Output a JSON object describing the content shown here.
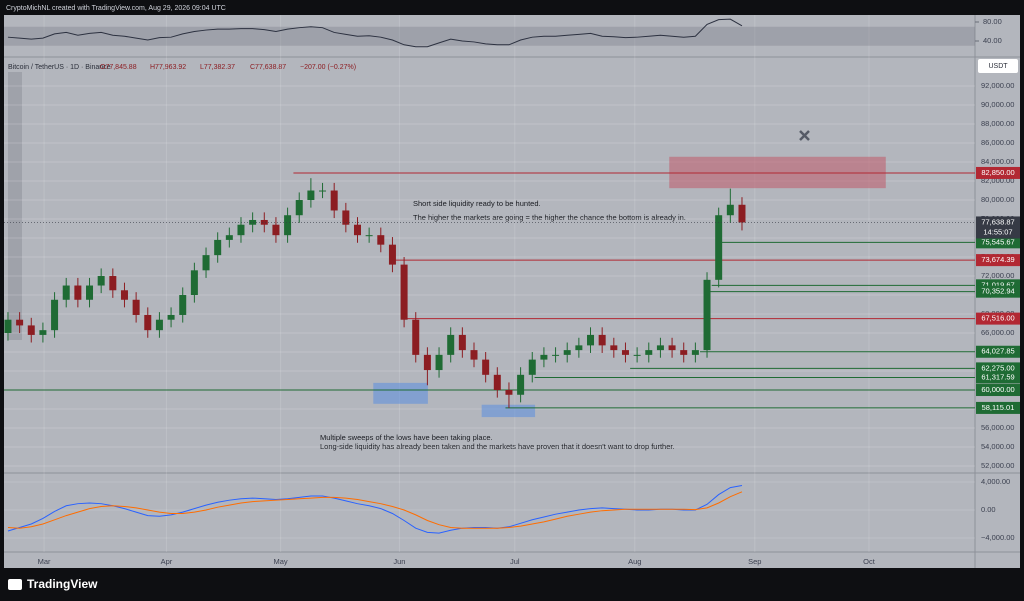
{
  "header": {
    "credit": "CryptoMichNL created with TradingView.com, Aug 29, 2026 09:04 UTC",
    "symbol": "Bitcoin / TetherUS · 1D · Binance",
    "ohlc": [
      "O77,845.88",
      "H77,963.92",
      "L77,382.37",
      "C77,638.87",
      "−207.00 (−0.27%)"
    ],
    "currency": "USDT",
    "brand": "TradingView"
  },
  "annotations": [
    "Short side liquidity ready to be hunted.",
    "The higher the markets are going = the higher the chance the bottom is already in.",
    "Multiple sweeps of the lows have been taking place.",
    "Long-side liquidity has already been taken and the markets have proven that it doesn't want to drop further."
  ],
  "chart_data": {
    "type": "candlestick",
    "up_color": "#1f6b34",
    "down_color": "#8c1d22",
    "grid": true,
    "xlim": [
      -0.34,
      83
    ],
    "xticks": [
      {
        "value": 3.1,
        "label": "Mar"
      },
      {
        "value": 13.6,
        "label": "Apr"
      },
      {
        "value": 23.4,
        "label": "May"
      },
      {
        "value": 33.6,
        "label": "Jun"
      },
      {
        "value": 43.5,
        "label": "Jul"
      },
      {
        "value": 53.8,
        "label": "Aug"
      },
      {
        "value": 64.1,
        "label": "Sep"
      },
      {
        "value": 73.9,
        "label": "Oct"
      }
    ],
    "ylim": [
      51370,
      94950
    ],
    "yticks": [
      {
        "value": 92000,
        "label": "92,000.00"
      },
      {
        "value": 90000,
        "label": "90,000.00"
      },
      {
        "value": 88000,
        "label": "88,000.00"
      },
      {
        "value": 86000,
        "label": "86,000.00"
      },
      {
        "value": 84000,
        "label": "84,000.00"
      },
      {
        "value": 82000,
        "label": "82,000.00"
      },
      {
        "value": 80000,
        "label": "80,000.00"
      },
      {
        "value": 78000,
        "label": "78,000.00"
      },
      {
        "value": 76000,
        "label": "76,000.00"
      },
      {
        "value": 74000,
        "label": "74,000.00"
      },
      {
        "value": 72000,
        "label": "72,000.00"
      },
      {
        "value": 70000,
        "label": "70,000.00"
      },
      {
        "value": 68000,
        "label": "68,000.00"
      },
      {
        "value": 66000,
        "label": "66,000.00"
      },
      {
        "value": 64000,
        "label": "64,000.00"
      },
      {
        "value": 62000,
        "label": "62,000.00"
      },
      {
        "value": 60000,
        "label": "60,000.00"
      },
      {
        "value": 58000,
        "label": "58,000.00"
      },
      {
        "value": 56000,
        "label": "56,000.00"
      },
      {
        "value": 54000,
        "label": "54,000.00"
      },
      {
        "value": 52000,
        "label": "52,000.00"
      }
    ],
    "open": [
      66000,
      67400,
      66800,
      65800,
      66300,
      69500,
      71000,
      69500,
      71000,
      72000,
      70500,
      69500,
      67900,
      66300,
      67400,
      67900,
      70000,
      72600,
      74200,
      75800,
      76300,
      77400,
      77900,
      77400,
      76300,
      78400,
      80000,
      81000,
      81000,
      78900,
      77400,
      76300,
      76300,
      75300,
      73200,
      67400,
      63700,
      62100,
      63700,
      65800,
      64200,
      63200,
      61600,
      60000,
      59500,
      61600,
      63200,
      63700,
      63700,
      64200,
      64700,
      65800,
      64700,
      64200,
      63700,
      63700,
      64200,
      64700,
      64200,
      63700,
      64200,
      71600,
      78400,
      79500
    ],
    "high": [
      68200,
      68200,
      67600,
      67100,
      70300,
      71800,
      71800,
      71800,
      72800,
      72800,
      71300,
      70300,
      68700,
      68200,
      68700,
      70800,
      73400,
      75000,
      76600,
      77100,
      78200,
      78700,
      78700,
      78200,
      79200,
      80800,
      82300,
      81800,
      81800,
      79700,
      78200,
      77100,
      77100,
      76100,
      74000,
      68200,
      64500,
      64500,
      66600,
      66600,
      65000,
      64000,
      62400,
      60800,
      62400,
      64000,
      64500,
      64500,
      65000,
      65500,
      66600,
      66600,
      65500,
      65000,
      64500,
      65000,
      65500,
      65500,
      65000,
      65000,
      72400,
      79200,
      81200,
      80300
    ],
    "low": [
      65200,
      66000,
      65000,
      65000,
      65500,
      68700,
      68700,
      68700,
      70200,
      69700,
      68700,
      67100,
      65500,
      65500,
      66600,
      67100,
      69200,
      71800,
      73400,
      75000,
      75500,
      76600,
      76600,
      75500,
      75500,
      77600,
      79200,
      80200,
      78100,
      76600,
      75500,
      75500,
      74500,
      72400,
      66600,
      62900,
      60500,
      61300,
      62900,
      63400,
      62400,
      60800,
      59200,
      58100,
      58700,
      60800,
      62400,
      62900,
      62900,
      63400,
      63900,
      63900,
      63400,
      62900,
      62900,
      62900,
      63400,
      63400,
      62900,
      62900,
      63400,
      70800,
      77600,
      76800
    ],
    "close": [
      67400,
      66800,
      65800,
      66300,
      69500,
      71000,
      69500,
      71000,
      72000,
      70500,
      69500,
      67900,
      66300,
      67400,
      67900,
      70000,
      72600,
      74200,
      75800,
      76300,
      77400,
      77900,
      77400,
      76300,
      78400,
      80000,
      81000,
      81000,
      78900,
      77400,
      76300,
      76300,
      75300,
      73200,
      67400,
      63700,
      62100,
      63700,
      65800,
      64200,
      63200,
      61600,
      60000,
      59500,
      61600,
      63200,
      63700,
      63700,
      64200,
      64700,
      65800,
      64700,
      64200,
      63700,
      63700,
      64200,
      64700,
      64200,
      63700,
      64200,
      71600,
      78400,
      79500,
      77638.87
    ],
    "last_price": {
      "value": 77638.87,
      "label": "77,638.87",
      "countdown": "14:55:07",
      "color": "#363a45"
    },
    "levels": [
      {
        "value": 82850,
        "label": "82,850.00",
        "color": "#b22833",
        "x_start": 24.5
      },
      {
        "value": 75545.67,
        "label": "75,545.67",
        "color": "#1f6b34",
        "x_start": 61.1
      },
      {
        "value": 73674.39,
        "label": "73,674.39",
        "color": "#b22833",
        "x_start": 33.2
      },
      {
        "value": 71019.67,
        "label": "71,019.67",
        "color": "#1f6b34",
        "x_start": 60.4
      },
      {
        "value": 70352.94,
        "label": "70,352.94",
        "color": "#1f6b34",
        "x_start": 60.2
      },
      {
        "value": 67516,
        "label": "67,516.00",
        "color": "#b22833",
        "x_start": 34.2
      },
      {
        "value": 64027.85,
        "label": "64,027.85",
        "color": "#1f6b34",
        "x_start": 59.4
      },
      {
        "value": 62275,
        "label": "62,275.00",
        "color": "#1f6b34",
        "x_start": 53.4
      },
      {
        "value": 61317.59,
        "label": "61,317.59",
        "color": "#1f6b34",
        "x_start": 45.2
      },
      {
        "value": 60000,
        "label": "60,000.00",
        "color": "#1f6b34",
        "x_start": -0.34
      },
      {
        "value": 58115.01,
        "label": "58,115.01",
        "color": "#1f6b34",
        "x_start": 42.7
      }
    ],
    "zones": [
      {
        "x": [
          56.8,
          75.3
        ],
        "y": [
          81300,
          84500
        ],
        "color": "#c05a6a"
      },
      {
        "x": [
          31.4,
          36.0
        ],
        "y": [
          58600,
          60700
        ],
        "color": "#5b8fe0"
      },
      {
        "x": [
          40.7,
          45.2
        ],
        "y": [
          57200,
          58400
        ],
        "color": "#5b8fe0"
      }
    ],
    "rsi": {
      "values": [
        48,
        46,
        44,
        46,
        55,
        58,
        52,
        56,
        58,
        52,
        50,
        46,
        42,
        47,
        48,
        55,
        60,
        63,
        65,
        65,
        66,
        66,
        64,
        60,
        65,
        68,
        70,
        68,
        58,
        54,
        50,
        51,
        48,
        42,
        32,
        28,
        28,
        36,
        44,
        40,
        38,
        34,
        32,
        32,
        42,
        48,
        50,
        50,
        52,
        54,
        56,
        50,
        49,
        47,
        48,
        50,
        52,
        50,
        48,
        50,
        75,
        85,
        86,
        72
      ],
      "color": "#2c3140",
      "band": [
        30,
        70
      ],
      "ylim": [
        10.5,
        90.5
      ],
      "yticks": [
        {
          "value": 80,
          "label": "80.00"
        },
        {
          "value": 40,
          "label": "40.00"
        }
      ]
    },
    "macd": {
      "ylim": [
        -6000,
        5140
      ],
      "yticks": [
        {
          "value": 4000,
          "label": "4,000.00"
        },
        {
          "value": 0,
          "label": "0.00"
        },
        {
          "value": -4000,
          "label": "−4,000.00"
        }
      ],
      "series": [
        {
          "color": "#2962ff",
          "values": [
            -3000,
            -2500,
            -2000,
            -1200,
            -200,
            600,
            900,
            1000,
            900,
            600,
            200,
            -300,
            -800,
            -900,
            -700,
            -300,
            200,
            700,
            1100,
            1400,
            1600,
            1700,
            1600,
            1500,
            1600,
            1800,
            2000,
            2000,
            1700,
            1300,
            900,
            600,
            200,
            -500,
            -1500,
            -2600,
            -3200,
            -3300,
            -2900,
            -2600,
            -2500,
            -2500,
            -2600,
            -2400,
            -1900,
            -1400,
            -1000,
            -600,
            -300,
            0,
            200,
            300,
            200,
            100,
            0,
            0,
            100,
            100,
            0,
            0,
            800,
            2200,
            3200,
            3500
          ]
        },
        {
          "color": "#ff6d00",
          "values": [
            -2500,
            -2600,
            -2400,
            -2000,
            -1400,
            -800,
            -300,
            200,
            500,
            600,
            500,
            300,
            0,
            -300,
            -500,
            -500,
            -300,
            0,
            400,
            700,
            1000,
            1200,
            1300,
            1400,
            1500,
            1600,
            1700,
            1800,
            1800,
            1700,
            1500,
            1200,
            900,
            500,
            0,
            -700,
            -1500,
            -2100,
            -2500,
            -2600,
            -2600,
            -2600,
            -2600,
            -2500,
            -2300,
            -2000,
            -1700,
            -1300,
            -900,
            -600,
            -300,
            -100,
            0,
            100,
            100,
            100,
            100,
            100,
            100,
            50,
            300,
            1000,
            1900,
            2600
          ]
        }
      ]
    }
  }
}
